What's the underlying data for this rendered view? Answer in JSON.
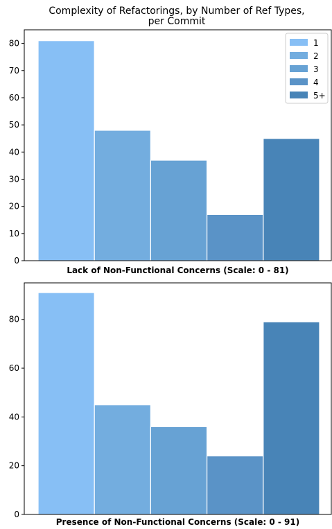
{
  "figure": {
    "title_line1": "Complexity of Refactorings, by Number of Ref Types,",
    "title_line2": "per Commit"
  },
  "legend": {
    "placement": "top-right",
    "entries": [
      "1",
      "2",
      "3",
      "4",
      "5+"
    ]
  },
  "colors": {
    "series": [
      "#87bff5",
      "#73addf",
      "#67a2d4",
      "#5a93c7",
      "#4884b7"
    ]
  },
  "chart_data": [
    {
      "type": "bar",
      "categories": [
        "1",
        "2",
        "3",
        "4",
        "5+"
      ],
      "values": [
        81,
        48,
        37,
        17,
        45
      ],
      "xlabel": "Lack of Non-Functional Concerns (Scale: 0 - 81)",
      "ylabel": "",
      "ylim": [
        0,
        85
      ],
      "yticks": [
        0,
        10,
        20,
        30,
        40,
        50,
        60,
        70,
        80
      ],
      "grid": false
    },
    {
      "type": "bar",
      "categories": [
        "1",
        "2",
        "3",
        "4",
        "5+"
      ],
      "values": [
        91,
        45,
        36,
        24,
        79
      ],
      "xlabel": "Presence of Non-Functional Concerns (Scale: 0 - 91)",
      "ylabel": "",
      "ylim": [
        0,
        95
      ],
      "yticks": [
        0,
        20,
        40,
        60,
        80
      ],
      "grid": false
    }
  ]
}
